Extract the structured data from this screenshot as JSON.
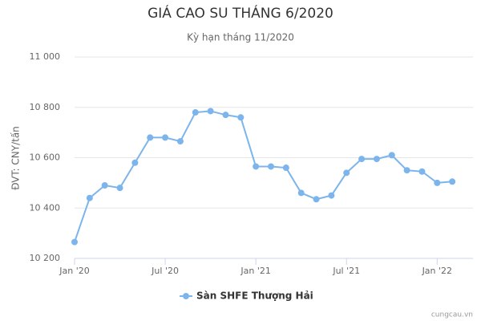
{
  "chart_data": {
    "type": "line",
    "title": "GIÁ CAO SU THÁNG 6/2020",
    "subtitle": "Kỳ hạn tháng 11/2020",
    "y_label": "ĐVT: CNY/tấn",
    "credit": "cungcau.vn",
    "x": [
      "2020-01",
      "2020-02",
      "2020-03",
      "2020-04",
      "2020-05",
      "2020-06",
      "2020-07",
      "2020-08",
      "2020-09",
      "2020-10",
      "2020-11",
      "2020-12",
      "2021-01",
      "2021-02",
      "2021-03",
      "2021-04",
      "2021-05",
      "2021-06",
      "2021-07",
      "2021-08",
      "2021-09",
      "2021-10",
      "2021-11",
      "2021-12",
      "2022-01",
      "2022-02"
    ],
    "series": [
      {
        "name": "Sàn SHFE Thượng Hải",
        "color": "#7cb5ec",
        "values": [
          10265,
          10440,
          10490,
          10480,
          10580,
          10680,
          10680,
          10665,
          10780,
          10785,
          10770,
          10760,
          10565,
          10565,
          10560,
          10460,
          10435,
          10450,
          10540,
          10595,
          10595,
          10610,
          10550,
          10545,
          10500,
          10505
        ]
      }
    ],
    "xlim": [
      "2020-01",
      "2022-03"
    ],
    "xticks": [
      {
        "value": "2020-01",
        "label": "Jan '20"
      },
      {
        "value": "2020-07",
        "label": "Jul '20"
      },
      {
        "value": "2021-01",
        "label": "Jan '21"
      },
      {
        "value": "2021-07",
        "label": "Jul '21"
      },
      {
        "value": "2022-01",
        "label": "Jan '22"
      }
    ],
    "ylim": [
      10200,
      11000
    ],
    "yticks": [
      {
        "value": 10200,
        "label": "10 200"
      },
      {
        "value": 10400,
        "label": "10 400"
      },
      {
        "value": 10600,
        "label": "10 600"
      },
      {
        "value": 10800,
        "label": "10 800"
      },
      {
        "value": 11000,
        "label": "11 000"
      }
    ],
    "grid": true
  }
}
